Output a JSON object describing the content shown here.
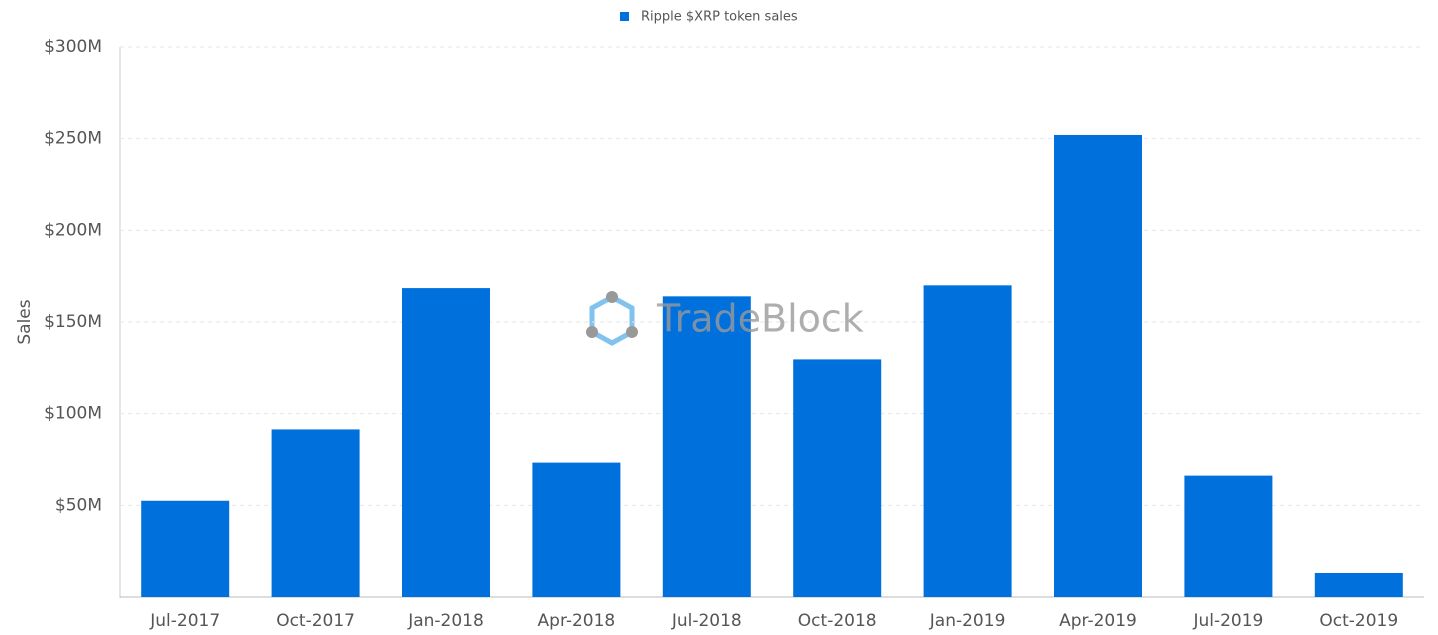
{
  "chart_data": {
    "type": "bar",
    "legend": "Ripple $XRP token sales",
    "y_label": "Sales",
    "watermark": "TradeBlock",
    "categories": [
      "Jul-2017",
      "Oct-2017",
      "Jan-2018",
      "Apr-2018",
      "Jul-2018",
      "Oct-2018",
      "Jan-2019",
      "Apr-2019",
      "Jul-2019",
      "Oct-2019"
    ],
    "values": [
      52.5,
      91.4,
      168.5,
      73.3,
      164,
      129.6,
      170,
      252,
      66.2,
      13.1
    ],
    "color": "#0070dd",
    "ylim": [
      0,
      300
    ],
    "yticks": [
      {
        "value": 50,
        "label": "$50M"
      },
      {
        "value": 100,
        "label": "$100M"
      },
      {
        "value": 150,
        "label": "$150M"
      },
      {
        "value": 200,
        "label": "$200M"
      },
      {
        "value": 250,
        "label": "$250M"
      },
      {
        "value": 300,
        "label": "$300M"
      }
    ],
    "grid": true
  }
}
